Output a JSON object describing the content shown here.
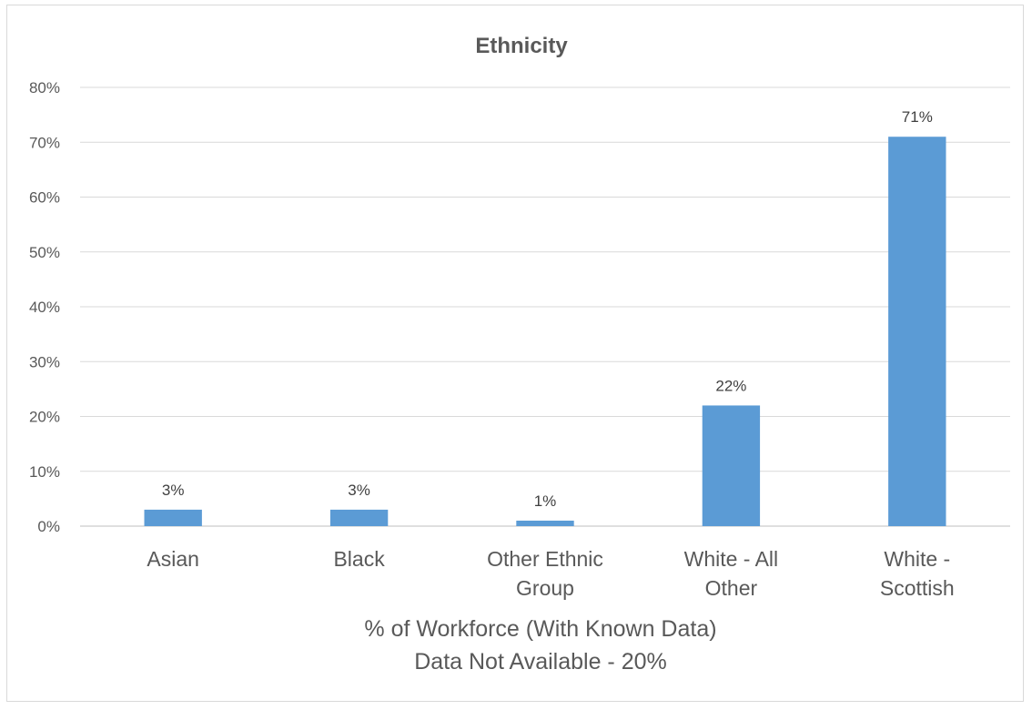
{
  "chart_data": {
    "type": "bar",
    "title": "Ethnicity",
    "categories": [
      "Asian",
      "Black",
      "Other Ethnic Group",
      "White - All Other",
      "White - Scottish"
    ],
    "category_lines": [
      [
        "Asian"
      ],
      [
        "Black"
      ],
      [
        "Other Ethnic",
        "Group"
      ],
      [
        "White - All",
        "Other"
      ],
      [
        "White -",
        "Scottish"
      ]
    ],
    "values": [
      3,
      3,
      1,
      22,
      71
    ],
    "data_labels": [
      "3%",
      "3%",
      "1%",
      "22%",
      "71%"
    ],
    "xlabel_lines": [
      "% of Workforce (With Known Data)",
      "Data Not Available - 20%"
    ],
    "ylabel": "",
    "ylim": [
      0,
      80
    ],
    "yticks": [
      0,
      10,
      20,
      30,
      40,
      50,
      60,
      70,
      80
    ],
    "ytick_labels": [
      "0%",
      "10%",
      "20%",
      "30%",
      "40%",
      "50%",
      "60%",
      "70%",
      "80%"
    ],
    "grid": true,
    "legend": "none",
    "bar_color": "#5B9BD5"
  }
}
